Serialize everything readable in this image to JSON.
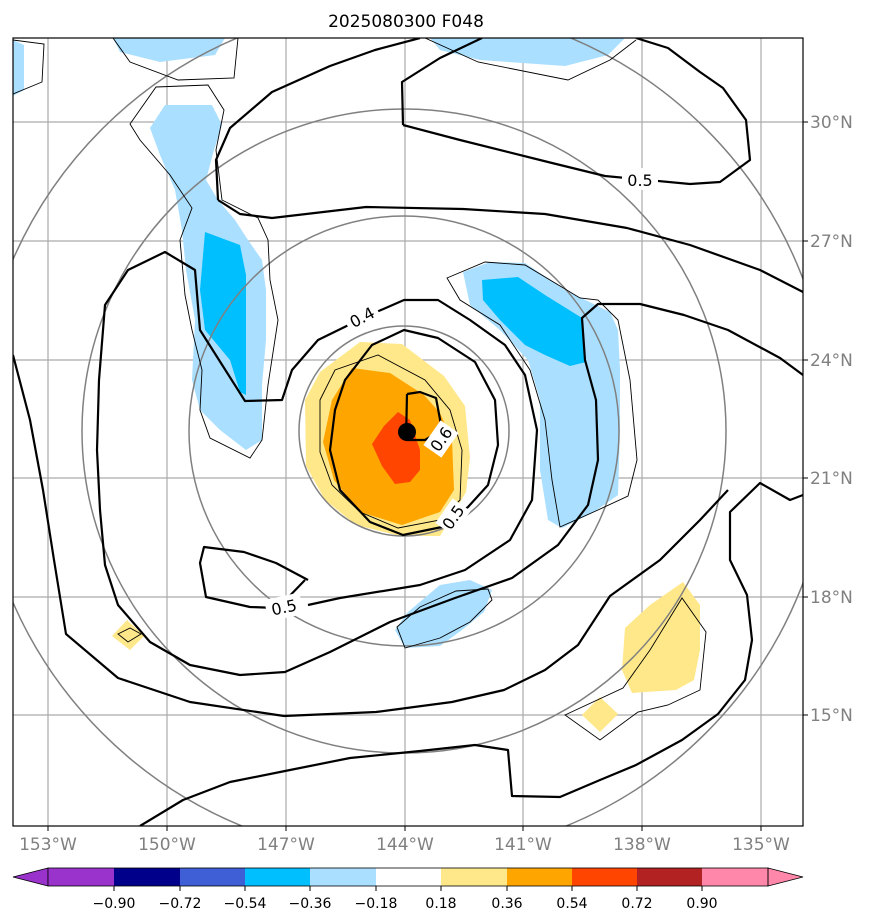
{
  "chart_data": {
    "type": "contour_map",
    "title": "2025080300 F048",
    "projection": "lon/lat map with range rings centered on storm",
    "center_marker": {
      "lon": -144.0,
      "lat": 22.2,
      "symbol": "filled-circle"
    },
    "x_ticks": [
      "153°W",
      "150°W",
      "147°W",
      "144°W",
      "141°W",
      "138°W",
      "135°W"
    ],
    "y_ticks": [
      "30°N",
      "27°N",
      "24°N",
      "21°N",
      "18°N",
      "15°N"
    ],
    "contour_labels": [
      "0.5",
      "0.4",
      "0.6",
      "0.5",
      "0.5"
    ],
    "colorbar": {
      "ticks": [
        "−0.90",
        "−0.72",
        "−0.54",
        "−0.36",
        "−0.18",
        "0.18",
        "0.36",
        "0.54",
        "0.72",
        "0.90"
      ],
      "colors": [
        "#9933cc",
        "#00008b",
        "#3f5fd6",
        "#00bfff",
        "#aadfff",
        "#ffffff",
        "#ffe88a",
        "#ffa500",
        "#ff4500",
        "#b22222",
        "#ff88aa"
      ],
      "extend": "both"
    }
  }
}
